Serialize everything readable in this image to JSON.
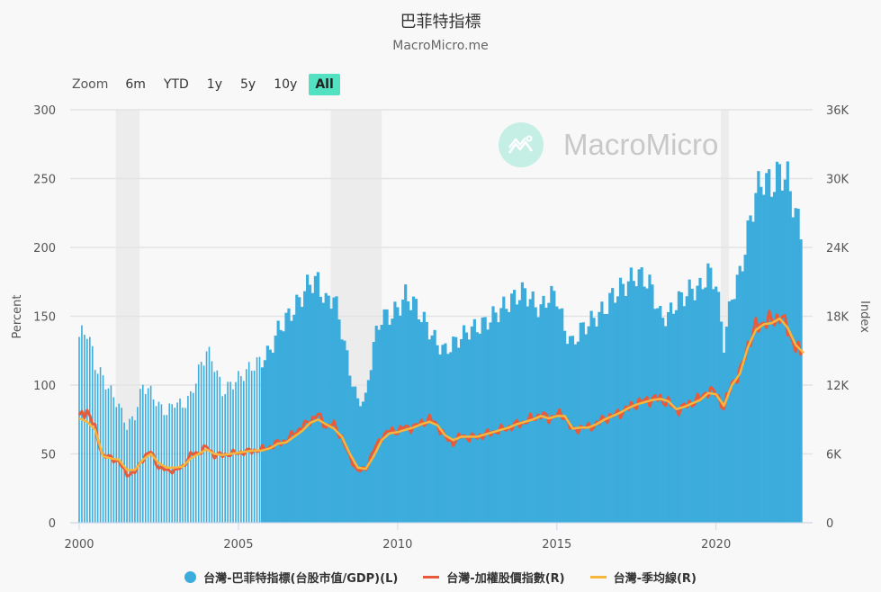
{
  "header": {
    "title": "巴菲特指標",
    "subtitle": "MacroMicro.me"
  },
  "zoom": {
    "label": "Zoom",
    "buttons": [
      "6m",
      "YTD",
      "1y",
      "5y",
      "10y",
      "All"
    ],
    "active": "All"
  },
  "watermark": {
    "text": "MacroMicro"
  },
  "legend": [
    {
      "label": "台灣-巴菲特指標(台股市值/GDP)(L)",
      "color": "#3bacdc",
      "shape": "dot"
    },
    {
      "label": "台灣-加權股價指數(R)",
      "color": "#e85a3a",
      "shape": "line"
    },
    {
      "label": "台灣-季均線(R)",
      "color": "#f6b73c",
      "shape": "line"
    }
  ],
  "chart_data": {
    "type": "bar+line",
    "title": "巴菲特指標",
    "subtitle": "MacroMicro.me",
    "xlabel": "",
    "ylabel_left": "Percent",
    "ylabel_right": "Index",
    "ylim_left": [
      0,
      300
    ],
    "ylim_right": [
      0,
      36000
    ],
    "yticks_left": [
      "0",
      "50",
      "100",
      "150",
      "200",
      "250",
      "300"
    ],
    "yticks_right": [
      "0",
      "6K",
      "12K",
      "18K",
      "24K",
      "30K",
      "36K"
    ],
    "xticks": [
      "2000",
      "2005",
      "2010",
      "2015",
      "2020"
    ],
    "x_range": [
      2000.0,
      2022.75
    ],
    "grid": true,
    "legend_position": "bottom",
    "recession_bands": [
      [
        2001.15,
        2001.9
      ],
      [
        2007.9,
        2009.5
      ],
      [
        2020.15,
        2020.4
      ]
    ],
    "series": [
      {
        "name": "台灣-巴菲特指標(台股市值/GDP)(L)",
        "type": "column",
        "color": "#3bacdc",
        "axis": "left",
        "x": [
          2000.0,
          2000.25,
          2000.5,
          2000.75,
          2001.0,
          2001.25,
          2001.5,
          2001.75,
          2002.0,
          2002.25,
          2002.5,
          2002.75,
          2003.0,
          2003.25,
          2003.5,
          2003.75,
          2004.0,
          2004.25,
          2004.5,
          2004.75,
          2005.0,
          2005.25,
          2005.5,
          2005.75,
          2006.0,
          2006.25,
          2006.5,
          2006.75,
          2007.0,
          2007.25,
          2007.5,
          2007.75,
          2008.0,
          2008.25,
          2008.5,
          2008.75,
          2009.0,
          2009.25,
          2009.5,
          2009.75,
          2010.0,
          2010.25,
          2010.5,
          2010.75,
          2011.0,
          2011.25,
          2011.5,
          2011.75,
          2012.0,
          2012.25,
          2012.5,
          2012.75,
          2013.0,
          2013.25,
          2013.5,
          2013.75,
          2014.0,
          2014.25,
          2014.5,
          2014.75,
          2015.0,
          2015.25,
          2015.5,
          2015.75,
          2016.0,
          2016.25,
          2016.5,
          2016.75,
          2017.0,
          2017.25,
          2017.5,
          2017.75,
          2018.0,
          2018.25,
          2018.5,
          2018.75,
          2019.0,
          2019.25,
          2019.5,
          2019.75,
          2020.0,
          2020.25,
          2020.5,
          2020.75,
          2021.0,
          2021.25,
          2021.5,
          2021.75,
          2022.0,
          2022.25,
          2022.5,
          2022.75
        ],
        "values": [
          135,
          140,
          115,
          105,
          95,
          85,
          70,
          78,
          100,
          95,
          85,
          80,
          88,
          85,
          92,
          110,
          125,
          115,
          95,
          100,
          105,
          110,
          115,
          118,
          125,
          140,
          148,
          155,
          165,
          175,
          175,
          160,
          165,
          140,
          110,
          88,
          90,
          130,
          150,
          150,
          155,
          165,
          160,
          150,
          140,
          130,
          125,
          130,
          135,
          140,
          142,
          145,
          150,
          155,
          160,
          165,
          168,
          160,
          155,
          165,
          165,
          140,
          130,
          140,
          145,
          150,
          155,
          165,
          170,
          175,
          180,
          178,
          170,
          150,
          150,
          160,
          165,
          170,
          170,
          182,
          175,
          130,
          165,
          180,
          210,
          240,
          250,
          245,
          255,
          250,
          225,
          205
        ]
      },
      {
        "name": "台灣-加權股價指數(R)",
        "type": "line",
        "color": "#e85a3a",
        "axis": "right",
        "x": [
          2000.0,
          2000.25,
          2000.5,
          2000.75,
          2001.0,
          2001.25,
          2001.5,
          2001.75,
          2002.0,
          2002.25,
          2002.5,
          2002.75,
          2003.0,
          2003.25,
          2003.5,
          2003.75,
          2004.0,
          2004.25,
          2004.5,
          2004.75,
          2005.0,
          2005.25,
          2005.5,
          2005.75,
          2006.0,
          2006.25,
          2006.5,
          2006.75,
          2007.0,
          2007.25,
          2007.5,
          2007.75,
          2008.0,
          2008.25,
          2008.5,
          2008.75,
          2009.0,
          2009.25,
          2009.5,
          2009.75,
          2010.0,
          2010.25,
          2010.5,
          2010.75,
          2011.0,
          2011.25,
          2011.5,
          2011.75,
          2012.0,
          2012.25,
          2012.5,
          2012.75,
          2013.0,
          2013.25,
          2013.5,
          2013.75,
          2014.0,
          2014.25,
          2014.5,
          2014.75,
          2015.0,
          2015.25,
          2015.5,
          2015.75,
          2016.0,
          2016.25,
          2016.5,
          2016.75,
          2017.0,
          2017.25,
          2017.5,
          2017.75,
          2018.0,
          2018.25,
          2018.5,
          2018.75,
          2019.0,
          2019.25,
          2019.5,
          2019.75,
          2020.0,
          2020.25,
          2020.5,
          2020.75,
          2021.0,
          2021.25,
          2021.5,
          2021.75,
          2022.0,
          2022.25,
          2022.5,
          2022.75
        ],
        "values": [
          9200,
          9800,
          8200,
          5800,
          5700,
          5300,
          4200,
          4400,
          5600,
          6200,
          4800,
          4600,
          4500,
          4900,
          5900,
          6100,
          6600,
          5900,
          5900,
          6000,
          6100,
          6200,
          6300,
          6400,
          6600,
          7000,
          7100,
          7800,
          8300,
          8900,
          9400,
          8400,
          8500,
          7400,
          5700,
          4500,
          4700,
          6300,
          7500,
          8000,
          8000,
          8300,
          8300,
          8700,
          9000,
          8500,
          7400,
          7000,
          7600,
          7400,
          7500,
          7700,
          7900,
          8100,
          8300,
          8600,
          8800,
          9100,
          9400,
          9100,
          9400,
          9300,
          8000,
          8300,
          8300,
          8600,
          9100,
          9300,
          9600,
          10000,
          10400,
          10600,
          10800,
          10800,
          10500,
          9800,
          10100,
          10500,
          10800,
          11500,
          11300,
          10000,
          12200,
          13000,
          15500,
          17000,
          17500,
          17600,
          18000,
          17000,
          15200,
          14500
        ]
      },
      {
        "name": "台灣-季均線(R)",
        "type": "line",
        "color": "#f6b73c",
        "axis": "right",
        "x": [
          2000.0,
          2000.25,
          2000.5,
          2000.75,
          2001.0,
          2001.25,
          2001.5,
          2001.75,
          2002.0,
          2002.25,
          2002.5,
          2002.75,
          2003.0,
          2003.25,
          2003.5,
          2003.75,
          2004.0,
          2004.25,
          2004.5,
          2004.75,
          2005.0,
          2005.25,
          2005.5,
          2005.75,
          2006.0,
          2006.25,
          2006.5,
          2006.75,
          2007.0,
          2007.25,
          2007.5,
          2007.75,
          2008.0,
          2008.25,
          2008.5,
          2008.75,
          2009.0,
          2009.25,
          2009.5,
          2009.75,
          2010.0,
          2010.25,
          2010.5,
          2010.75,
          2011.0,
          2011.25,
          2011.5,
          2011.75,
          2012.0,
          2012.25,
          2012.5,
          2012.75,
          2013.0,
          2013.25,
          2013.5,
          2013.75,
          2014.0,
          2014.25,
          2014.5,
          2014.75,
          2015.0,
          2015.25,
          2015.5,
          2015.75,
          2016.0,
          2016.25,
          2016.5,
          2016.75,
          2017.0,
          2017.25,
          2017.5,
          2017.75,
          2018.0,
          2018.25,
          2018.5,
          2018.75,
          2019.0,
          2019.25,
          2019.5,
          2019.75,
          2020.0,
          2020.25,
          2020.5,
          2020.75,
          2021.0,
          2021.25,
          2021.5,
          2021.75,
          2022.0,
          2022.25,
          2022.5,
          2022.75
        ],
        "values": [
          9100,
          8800,
          8100,
          5800,
          5600,
          5500,
          4600,
          4600,
          5500,
          6000,
          5200,
          4800,
          4800,
          4900,
          5600,
          6000,
          6400,
          6000,
          5900,
          6000,
          6100,
          6200,
          6300,
          6300,
          6500,
          6900,
          7000,
          7500,
          8000,
          8700,
          9000,
          8600,
          8200,
          7500,
          6000,
          4800,
          4700,
          5800,
          7200,
          7800,
          7900,
          8100,
          8300,
          8600,
          8800,
          8500,
          7600,
          7200,
          7500,
          7500,
          7500,
          7700,
          7900,
          8100,
          8300,
          8600,
          8800,
          9000,
          9300,
          9100,
          9300,
          9300,
          8200,
          8300,
          8300,
          8600,
          9000,
          9300,
          9600,
          10000,
          10300,
          10500,
          10700,
          10800,
          10600,
          9900,
          10100,
          10400,
          10700,
          11300,
          11200,
          10200,
          12000,
          13000,
          15300,
          16800,
          17300,
          17400,
          17800,
          17000,
          15500,
          14800
        ]
      }
    ]
  }
}
